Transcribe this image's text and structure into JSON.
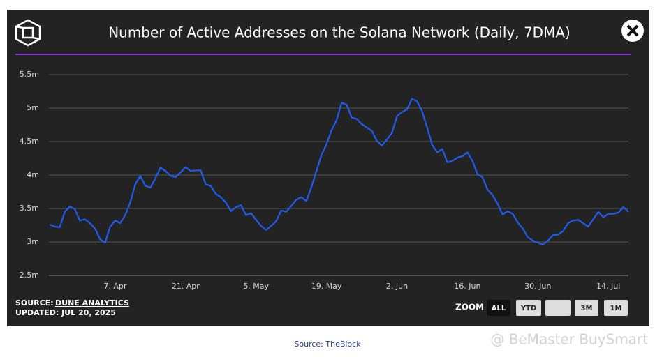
{
  "chart_data": {
    "type": "line",
    "title": "Number of Active Addresses on the Solana Network (Daily, 7DMA)",
    "source_label": "SOURCE:",
    "source_name": "DUNE ANALYTICS",
    "updated": "UPDATED: JUL 20, 2025",
    "zoom_label": "ZOOM",
    "zoom_buttons": [
      "ALL",
      "YTD",
      "3M",
      "1M"
    ],
    "credit": "Source: TheBlock",
    "watermark": "@ BeMaster BuySmart",
    "categories": [
      null,
      null,
      null,
      null,
      null,
      null,
      null,
      null,
      null,
      null,
      null,
      null,
      null,
      "7. Apr",
      null,
      null,
      null,
      null,
      null,
      null,
      null,
      null,
      null,
      null,
      null,
      null,
      null,
      "21. Apr",
      null,
      null,
      null,
      null,
      null,
      null,
      null,
      null,
      null,
      null,
      null,
      null,
      null,
      "5. May",
      null,
      null,
      null,
      null,
      null,
      null,
      null,
      null,
      null,
      null,
      null,
      null,
      null,
      "19. May",
      null,
      null,
      null,
      null,
      null,
      null,
      null,
      null,
      null,
      null,
      null,
      null,
      null,
      "2. Jun",
      null,
      null,
      null,
      null,
      null,
      null,
      null,
      null,
      null,
      null,
      null,
      null,
      null,
      "16. Jun",
      null,
      null,
      null,
      null,
      null,
      null,
      null,
      null,
      null,
      null,
      null,
      null,
      null,
      "30. Jun",
      null,
      null,
      null,
      null,
      null,
      null,
      null,
      null,
      null,
      null,
      null,
      null,
      null,
      "14. Jul",
      null,
      null,
      null,
      null
    ],
    "values": [
      3.26,
      3.23,
      3.22,
      3.45,
      3.53,
      3.49,
      3.32,
      3.34,
      3.28,
      3.2,
      3.04,
      2.99,
      3.23,
      3.32,
      3.28,
      3.4,
      3.59,
      3.86,
      3.99,
      3.84,
      3.81,
      3.95,
      4.11,
      4.06,
      3.99,
      3.97,
      4.04,
      4.12,
      4.06,
      4.07,
      4.07,
      3.86,
      3.84,
      3.72,
      3.67,
      3.59,
      3.46,
      3.52,
      3.55,
      3.4,
      3.43,
      3.33,
      3.24,
      3.18,
      3.24,
      3.31,
      3.47,
      3.45,
      3.54,
      3.63,
      3.67,
      3.61,
      3.82,
      4.06,
      4.3,
      4.46,
      4.67,
      4.82,
      5.08,
      5.05,
      4.86,
      4.84,
      4.76,
      4.71,
      4.66,
      4.51,
      4.44,
      4.53,
      4.63,
      4.88,
      4.94,
      4.98,
      5.14,
      5.1,
      4.95,
      4.71,
      4.45,
      4.34,
      4.39,
      4.19,
      4.21,
      4.26,
      4.28,
      4.34,
      4.21,
      4.01,
      3.97,
      3.78,
      3.7,
      3.57,
      3.41,
      3.46,
      3.42,
      3.29,
      3.2,
      3.07,
      3.02,
      2.99,
      2.96,
      3.02,
      3.1,
      3.11,
      3.16,
      3.28,
      3.32,
      3.33,
      3.28,
      3.23,
      3.34,
      3.45,
      3.37,
      3.42,
      3.42,
      3.44,
      3.52,
      3.45
    ],
    "color": "#1f5cf0",
    "ylim": [
      2.5,
      5.5
    ],
    "yticks": [
      {
        "value": 2.5,
        "label": "2.5m"
      },
      {
        "value": 3,
        "label": "3m"
      },
      {
        "value": 3.5,
        "label": "3.5m"
      },
      {
        "value": 4,
        "label": "4m"
      },
      {
        "value": 4.5,
        "label": "4.5m"
      },
      {
        "value": 5,
        "label": "5m"
      },
      {
        "value": 5.5,
        "label": "5.5m"
      }
    ],
    "grid": true
  }
}
